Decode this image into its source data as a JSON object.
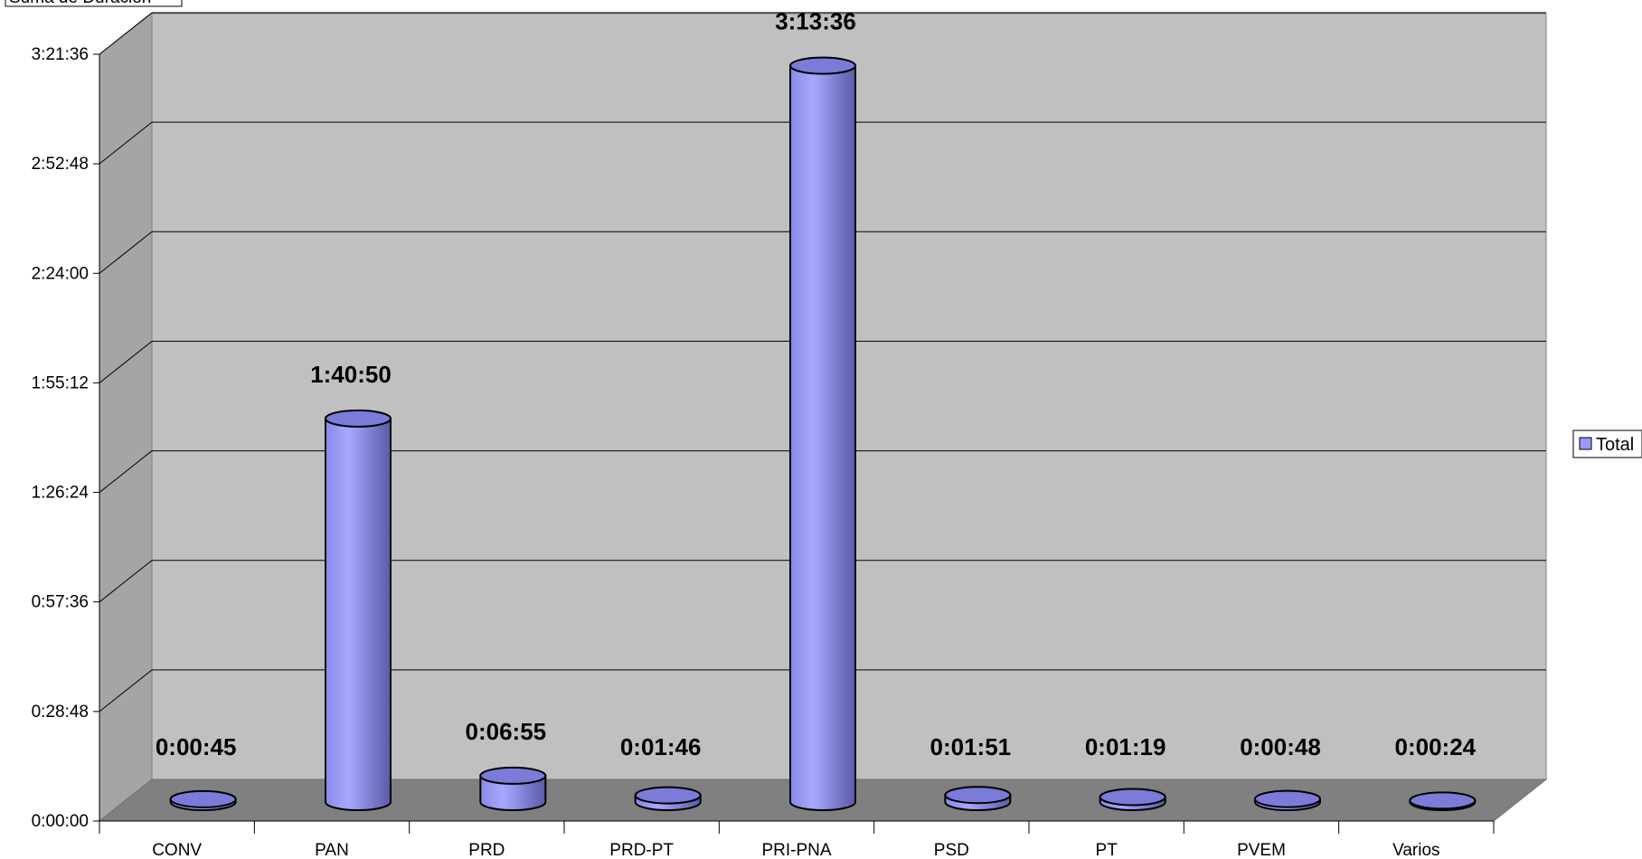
{
  "chart_data": {
    "type": "bar",
    "title": "Suma de Duración",
    "categories": [
      "CONV",
      "PAN",
      "PRD",
      "PRD-PT",
      "PRI-PNA",
      "PSD",
      "PT",
      "PVEM",
      "Varios"
    ],
    "series": [
      {
        "name": "Total",
        "values": [
          45,
          6050,
          415,
          106,
          11616,
          111,
          79,
          48,
          24
        ],
        "value_labels": [
          "0:00:45",
          "1:40:50",
          "0:06:55",
          "0:01:46",
          "3:13:36",
          "0:01:51",
          "0:01:19",
          "0:00:48",
          "0:00:24"
        ]
      }
    ],
    "y_unit": "seconds (h:mm:ss)",
    "ylim": [
      0,
      12096
    ],
    "y_ticks": [
      "0:00:00",
      "0:28:48",
      "0:57:36",
      "1:26:24",
      "1:55:12",
      "2:24:00",
      "2:52:48",
      "3:21:36"
    ],
    "grid": true,
    "legend_position": "right",
    "bar_shape": "3d-cylinder",
    "colors": {
      "bar": "#9999ff",
      "wall": "#c0c0c0",
      "side_wall": "#a5a5a5",
      "floor": "#808080"
    }
  }
}
